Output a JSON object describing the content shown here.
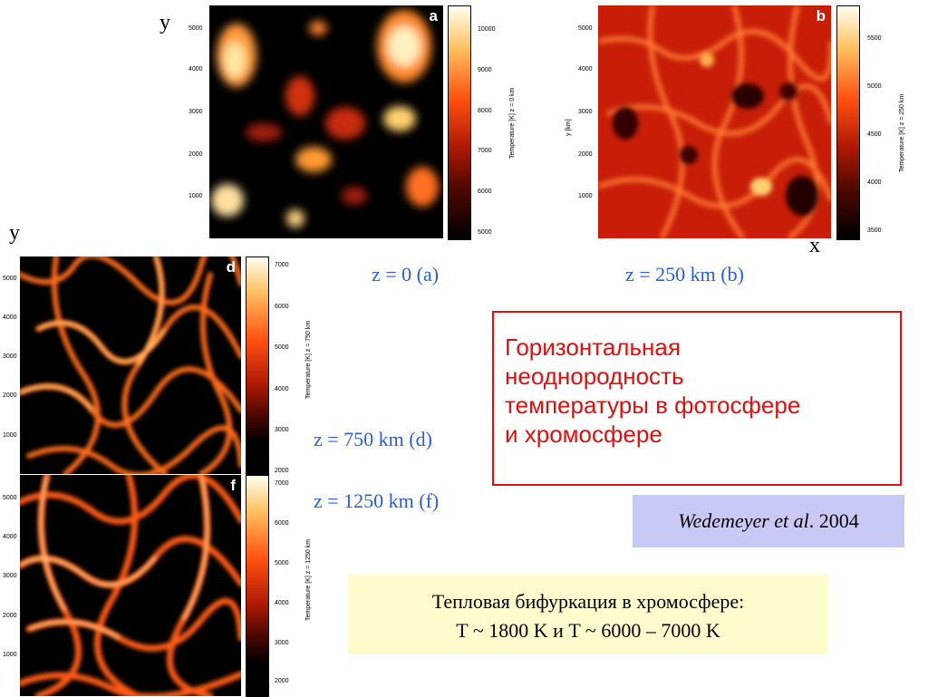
{
  "axes": {
    "y_top": "y",
    "y_left": "y",
    "x_right": "x"
  },
  "panels": {
    "a": {
      "label": "a",
      "y_ticks": [
        "5000",
        "4000",
        "3000",
        "2000",
        "1000"
      ],
      "cbar_ticks": [
        "10000",
        "9000",
        "8000",
        "7000",
        "6000",
        "5000"
      ],
      "cbar_title": "Temperature [K]   z =   0 km"
    },
    "b": {
      "label": "b",
      "y_ticks": [
        "5000",
        "4000",
        "3000",
        "2000",
        "1000"
      ],
      "y_axis_title": "y [km]",
      "cbar_ticks": [
        "5500",
        "5000",
        "4500",
        "4000",
        "3500"
      ],
      "cbar_title": "Temperature [K]   z =   250 km"
    },
    "d": {
      "label": "d",
      "y_ticks": [
        "5000",
        "4000",
        "3000",
        "2000",
        "1000"
      ],
      "cbar_ticks": [
        "7000",
        "6000",
        "5000",
        "4000",
        "3000",
        "2000"
      ],
      "cbar_title": "Temperature [K]   z =   750 km"
    },
    "f": {
      "label": "f",
      "y_ticks": [
        "5000",
        "4000",
        "3000",
        "2000",
        "1000"
      ],
      "cbar_ticks": [
        "7000",
        "6000",
        "5000",
        "4000",
        "3000",
        "2000"
      ],
      "cbar_title": "Temperature [K]   z =   1250 km"
    }
  },
  "captions": {
    "a": "z = 0 (a)",
    "b": "z = 250 km (b)",
    "d": "z = 750 km (d)",
    "f": "z = 1250 km (f)"
  },
  "title_box": {
    "line1": "Горизонтальная",
    "line2": "неоднородность",
    "line3": "температуры в фотосфере",
    "line4": "и хромосфере"
  },
  "reference": {
    "authors": "Wedemeyer et al",
    "year": ". 2004"
  },
  "bifurcation": {
    "line1": "Тепловая бифуркация в хромосфере:",
    "line2": "T ~ 1800 K  и  T ~ 6000 – 7000 K"
  },
  "colors": {
    "caption_blue": "#2b5fd6",
    "title_red": "#e01010",
    "ref_bg": "#c9c9f6",
    "bif_bg": "#fefccc"
  }
}
